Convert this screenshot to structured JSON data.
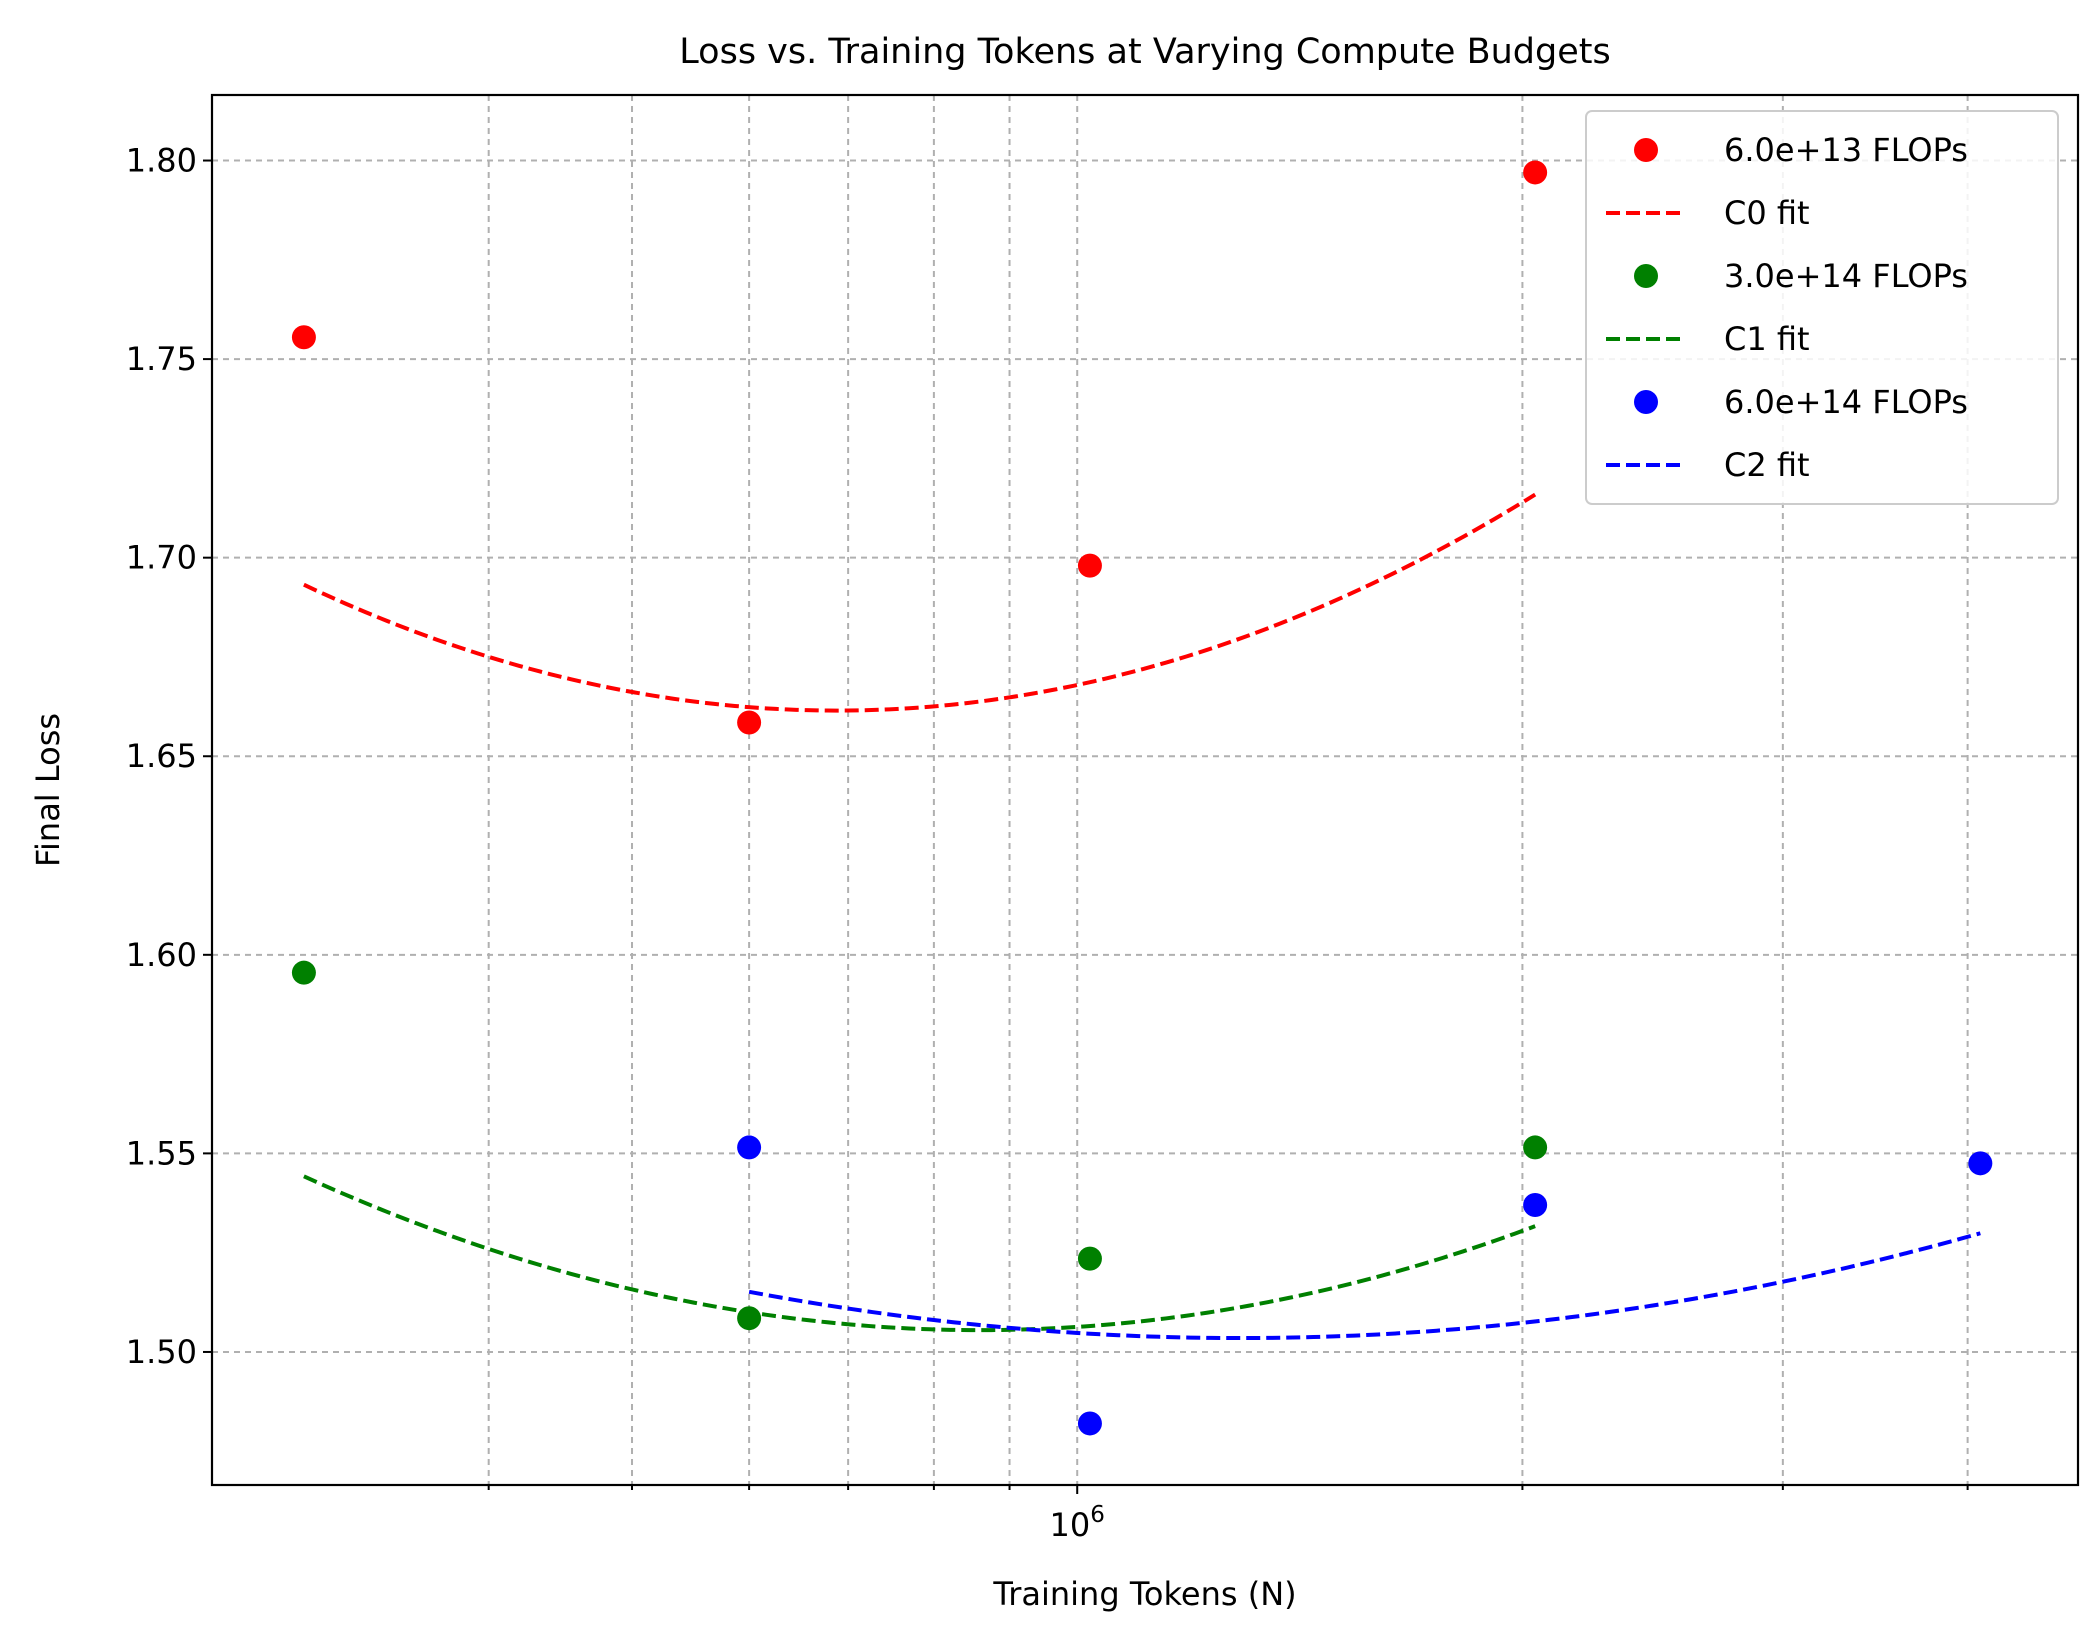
{
  "chart_data": {
    "type": "scatter",
    "title": "Loss vs. Training Tokens at Varying Compute Budgets",
    "xlabel": "Training Tokens (N)",
    "ylabel": "Final Loss",
    "xscale": "log",
    "xlim": [
      260000,
      4750000
    ],
    "ylim": [
      1.4665,
      1.8165
    ],
    "x_tick_labels": [
      {
        "value": 1000000,
        "mantissa": "10",
        "exponent": "6"
      }
    ],
    "x_minor_ticks": [
      400000,
      500000,
      600000,
      700000,
      800000,
      900000,
      2000000,
      3000000,
      4000000
    ],
    "y_ticks": [
      1.5,
      1.55,
      1.6,
      1.65,
      1.7,
      1.75,
      1.8
    ],
    "y_tick_labels": [
      "1.50",
      "1.55",
      "1.60",
      "1.65",
      "1.70",
      "1.75",
      "1.80"
    ],
    "grid": true,
    "legend_position": "top-right",
    "series": [
      {
        "name": "6.0e+13 FLOPs",
        "fit_name": "C0 fit",
        "color": "#ff0000",
        "points": [
          [
            300000,
            1.7555
          ],
          [
            600000,
            1.6585
          ],
          [
            1020000,
            1.698
          ],
          [
            2040000,
            1.797
          ]
        ],
        "fit": {
          "a": 1.6615,
          "b": 0.244,
          "logx0": 5.8375,
          "x_range": [
            300000,
            2040000
          ]
        }
      },
      {
        "name": "3.0e+14 FLOPs",
        "fit_name": "C1 fit",
        "color": "#008000",
        "points": [
          [
            300000,
            1.5955
          ],
          [
            600000,
            1.5085
          ],
          [
            1020000,
            1.5235
          ],
          [
            2040000,
            1.5515
          ]
        ],
        "fit": {
          "a": 1.5055,
          "b": 0.1855,
          "logx0": 5.934,
          "x_range": [
            300000,
            2040000
          ]
        }
      },
      {
        "name": "6.0e+14 FLOPs",
        "fit_name": "C2 fit",
        "color": "#0000ff",
        "points": [
          [
            600000,
            1.5515
          ],
          [
            1020000,
            1.482
          ],
          [
            2040000,
            1.537
          ],
          [
            4080000,
            1.5475
          ]
        ],
        "fit": {
          "a": 1.5035,
          "b": 0.1055,
          "logx0": 6.1105,
          "x_range": [
            600000,
            4080000
          ]
        }
      }
    ]
  }
}
